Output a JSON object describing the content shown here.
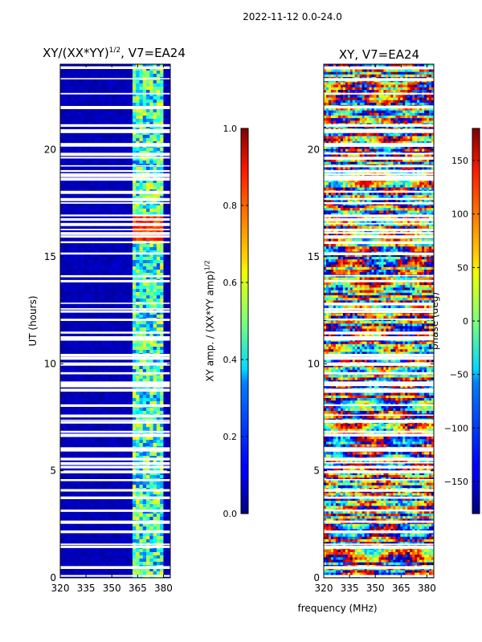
{
  "suptitle": "2022-11-12 0.0-24.0",
  "shared_xlabel": "frequency (MHz)",
  "chart_data": [
    {
      "type": "heatmap",
      "title": "XY/(XX*YY)^1/2, V7=EA24",
      "title_main": "XY/(XX*YY)",
      "title_sup": "1/2",
      "title_tail": ", V7=EA24",
      "xlabel": "frequency (MHz)",
      "ylabel": "UT (hours)",
      "xlim": [
        320,
        384
      ],
      "ylim": [
        0,
        24
      ],
      "xticks": [
        320,
        335,
        350,
        365,
        380
      ],
      "yticks": [
        0,
        5,
        10,
        15,
        20
      ],
      "colorbar": {
        "label": "XY amp. / (XX*YY amp)^1/2",
        "label_main": "XY amp. / (XX*YY amp)",
        "label_sup": "1/2",
        "range": [
          0.0,
          1.0
        ],
        "ticks": [
          "0.0",
          "0.2",
          "0.4",
          "0.6",
          "0.8",
          "1.0"
        ],
        "tick_values": [
          0.0,
          0.2,
          0.4,
          0.6,
          0.8,
          1.0
        ],
        "colormap": "jet"
      }
    },
    {
      "type": "heatmap",
      "title": "XY, V7=EA24",
      "xlabel": "frequency (MHz)",
      "ylabel": "",
      "xlim": [
        320,
        384
      ],
      "ylim": [
        0,
        24
      ],
      "xticks": [
        320,
        335,
        350,
        365,
        380
      ],
      "yticks": [
        0,
        5,
        10,
        15,
        20
      ],
      "colorbar": {
        "label": "phase (deg)",
        "range": [
          -180,
          180
        ],
        "ticks": [
          "150",
          "100",
          "50",
          "0",
          "−50",
          "−100",
          "−150"
        ],
        "tick_values": [
          150,
          100,
          50,
          0,
          -50,
          -100,
          -150
        ],
        "colormap": "jet"
      }
    }
  ]
}
